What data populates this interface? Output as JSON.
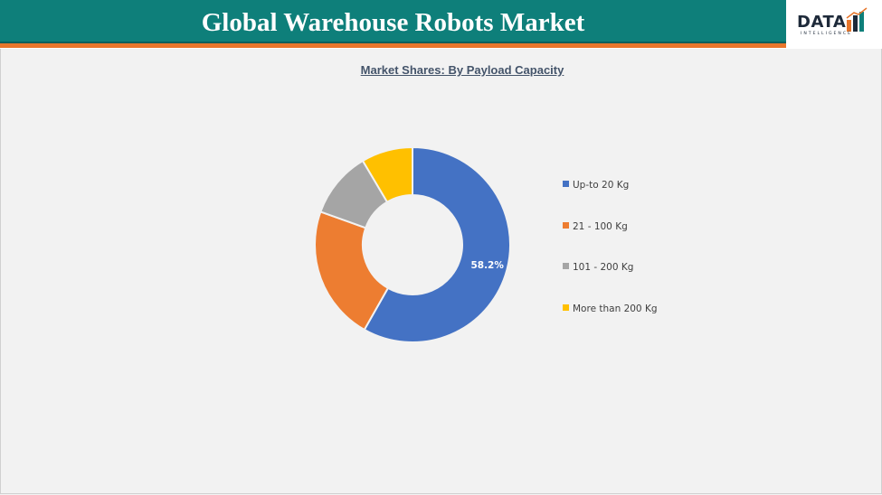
{
  "header": {
    "title": "Global Warehouse Robots Market",
    "logo_text": "DATA",
    "logo_subtext": "INTELLIGENCE",
    "band_color": "#0e7f7a",
    "stripe_color": "#e8762b"
  },
  "chart_data": {
    "type": "pie",
    "style": "donut",
    "title": "Market Shares: By Payload Capacity",
    "categories": [
      "Up-to 20 Kg",
      "21 - 100 Kg",
      "101 - 200 Kg",
      "More than 200 Kg"
    ],
    "values": [
      58.2,
      22.3,
      11.0,
      8.5
    ],
    "data_labels": [
      "58.2%",
      "",
      "",
      ""
    ],
    "colors": [
      "#4472c4",
      "#ed7d31",
      "#a5a5a5",
      "#ffc000"
    ],
    "legend_position": "right"
  }
}
